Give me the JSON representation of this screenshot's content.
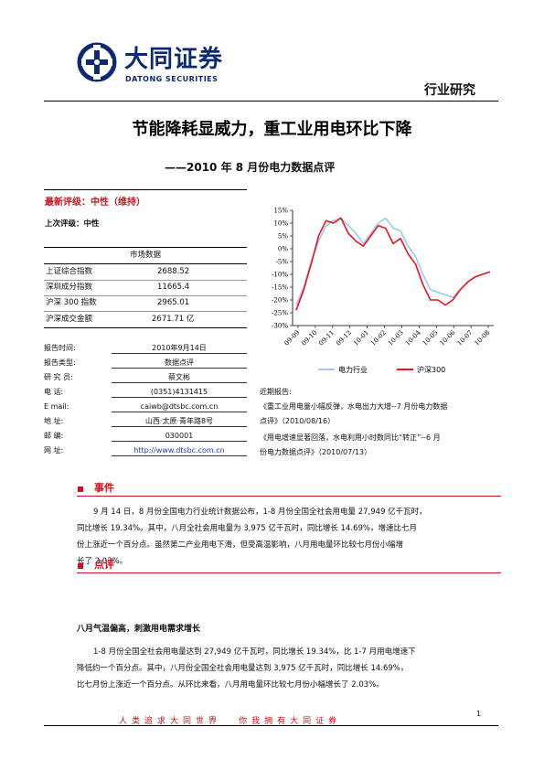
{
  "header": {
    "company_cn": "大同证券",
    "company_en": "DATONG SECURITIES",
    "report_category": "行业研究"
  },
  "title": {
    "main": "节能降耗显威力，重工业用电环比下降",
    "sub": "——2010 年 8 月份电力数据点评"
  },
  "rating": {
    "latest_label": "最新评级：",
    "latest_value": "中性（维持）",
    "previous_label": "上次评级：",
    "previous_value": "中性"
  },
  "market": {
    "caption": "市场数据",
    "rows": [
      {
        "label": "上证综合指数",
        "value": "2688.52"
      },
      {
        "label": "深圳成分指数",
        "value": "11665.4"
      },
      {
        "label": "沪深 300 指数",
        "value": "2965.01"
      },
      {
        "label": "沪深成交金额",
        "value": "2671.71 亿"
      }
    ]
  },
  "report_info": {
    "rows": [
      {
        "label": "报告时间:",
        "value": "2010年9月14日"
      },
      {
        "label": "报告类型:",
        "value": "数据点评"
      },
      {
        "label": "研 究 员:",
        "value": "蔡文彬"
      },
      {
        "label": "电      话:",
        "value": "(0351)4131415"
      },
      {
        "label": "E      mail:",
        "value": "caiwb@dtsbc.com.cn"
      },
      {
        "label": "地      址:",
        "value": "山西·太原·青年路8号"
      },
      {
        "label": "邮      编:",
        "value": "030001"
      },
      {
        "label": "网      址:",
        "value": "http://www.dtsbc.com.cn"
      }
    ]
  },
  "recent_reports": {
    "heading": "近期报告:",
    "items": [
      {
        "line1": "《重工业用电量小幅反弹，水电出力大增--7 月份电力数据",
        "line2": "点评》（2010/08/16）"
      },
      {
        "line1": "《用电增速显著回落，水电利用小时数同比“转正”--6 月",
        "line2": "份电力数据点评》（2010/07/13）"
      }
    ]
  },
  "chart_data": {
    "type": "line",
    "title": "",
    "xlabel": "",
    "ylabel": "",
    "y_ticks": [
      "15%",
      "10%",
      "5%",
      "0%",
      "-5%",
      "-10%",
      "-15%",
      "-20%",
      "-25%",
      "-30%"
    ],
    "ylim": [
      -30,
      15
    ],
    "x_ticks": [
      "09-09",
      "09-10",
      "09-11",
      "09-12",
      "10-01",
      "10-02",
      "10-03",
      "10-04",
      "10-05",
      "10-06",
      "10-07",
      "10-08"
    ],
    "legend_position": "bottom",
    "colors": {
      "电力行业": "#9ec8ee",
      "沪深300": "#e8141e"
    },
    "series": [
      {
        "name": "电力行业",
        "values": [
          -22,
          -15,
          -5,
          3,
          9,
          11,
          12,
          9,
          6,
          2,
          6,
          10,
          12,
          8,
          7,
          1,
          -3,
          -10,
          -16,
          -17,
          -18,
          -19,
          -16,
          -13,
          -11,
          -10,
          -9
        ]
      },
      {
        "name": "沪深300",
        "values": [
          -24,
          -16,
          -6,
          5,
          11,
          10,
          12,
          6,
          3,
          1,
          5,
          9,
          8,
          2,
          4,
          -2,
          -6,
          -14,
          -20,
          -20,
          -22,
          -20,
          -16,
          -13,
          -11,
          -10,
          -9
        ]
      }
    ]
  },
  "sections": {
    "event": {
      "heading": "事件",
      "lines": [
        "9 月 14 日，8 月份全国电力行业统计数据公布，1-8 月份全国全社会用电量 27,949 亿千瓦时，",
        "同比增长 19.34%。其中，八月全社会用电量为 3,975 亿千瓦时，同比增长 14.69%，增速比七月",
        "份上涨近一个百分点。虽然第二产业用电下滑，但受高温影响，八月用电量环比较七月份小幅增",
        "长了 2.03%。"
      ]
    },
    "comment": {
      "heading": "点评",
      "subheading": "八月气温偏高，刺激用电需求增长",
      "lines": [
        "1-8 月份全国全社会用电量达到 27,949 亿千瓦时，同比增长 19.34%，比 1-7 月用电增速下",
        "降低约一个百分点。其中，八月份全国全社会用电量达到 3,975 亿千瓦时，同比增长 14.69%，",
        "比七月份上涨近一个百分点。从环比来看，八月用电量环比较七月份小幅增长了 2.03%。"
      ]
    }
  },
  "footer": {
    "slogan_left": "人类追求大同世界",
    "slogan_right": "你我拥有大同证券",
    "page_number": "1"
  }
}
